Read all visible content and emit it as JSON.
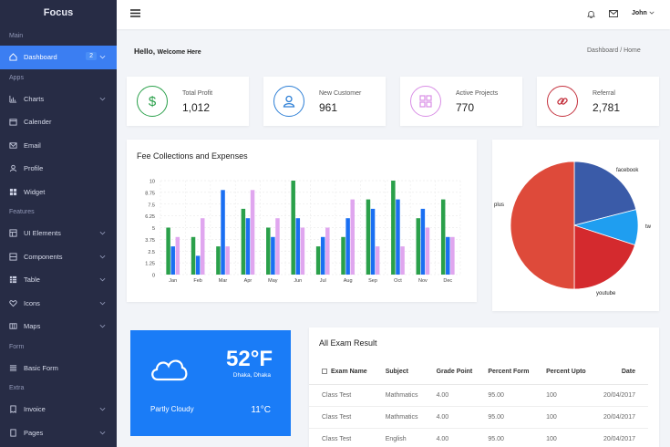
{
  "sidebar": {
    "brand": "Focus",
    "sections": {
      "main": "Main",
      "apps": "Apps",
      "features": "Features",
      "form": "Form",
      "extra": "Extra"
    },
    "items": {
      "dashboard": {
        "label": "Dashboard",
        "badge": "2",
        "icon": "home-icon"
      },
      "charts": {
        "label": "Charts",
        "icon": "bar-chart-icon"
      },
      "calender": {
        "label": "Calender",
        "icon": "calendar-icon"
      },
      "email": {
        "label": "Email",
        "icon": "mail-icon"
      },
      "profile": {
        "label": "Profile",
        "icon": "user-icon"
      },
      "widget": {
        "label": "Widget",
        "icon": "grid-icon"
      },
      "ui": {
        "label": "UI Elements",
        "icon": "layout-icon"
      },
      "components": {
        "label": "Components",
        "icon": "layers-icon"
      },
      "table": {
        "label": "Table",
        "icon": "table-icon"
      },
      "icons": {
        "label": "Icons",
        "icon": "heart-icon"
      },
      "maps": {
        "label": "Maps",
        "icon": "map-icon"
      },
      "basic_form": {
        "label": "Basic Form",
        "icon": "form-icon"
      },
      "invoice": {
        "label": "Invoice",
        "icon": "invoice-icon"
      },
      "pages": {
        "label": "Pages",
        "icon": "pages-icon"
      }
    }
  },
  "header": {
    "user": "John"
  },
  "page": {
    "hello": "Hello,",
    "welcome": "Welcome Here",
    "crumb": "Dashboard  /  Home"
  },
  "stats": [
    {
      "label": "Total Profit",
      "value": "1,012",
      "color": "#2aa04a",
      "icon": "dollar-icon"
    },
    {
      "label": "New Customer",
      "value": "961",
      "color": "#2d7fd6",
      "icon": "user-icon"
    },
    {
      "label": "Active Projects",
      "value": "770",
      "color": "#d98ee6",
      "icon": "grid-icon"
    },
    {
      "label": "Referral",
      "value": "2,781",
      "color": "#c4313d",
      "icon": "link-icon"
    }
  ],
  "fee_chart": {
    "title": "Fee Collections and Expenses"
  },
  "chart_data": [
    {
      "type": "bar",
      "categories": [
        "Jan",
        "Feb",
        "Mar",
        "Apr",
        "May",
        "Jun",
        "Jul",
        "Aug",
        "Sep",
        "Oct",
        "Nov",
        "Dec"
      ],
      "ylim": [
        0,
        10
      ],
      "yticks": [
        "0",
        "1.25",
        "2.5",
        "3.75",
        "5",
        "6.25",
        "7.5",
        "8.75",
        "10"
      ],
      "grid": true,
      "series": [
        {
          "color": "#2aa04a",
          "values": [
            5,
            4,
            3,
            7,
            5,
            10,
            3,
            4,
            8,
            10,
            6,
            8
          ]
        },
        {
          "color": "#1a6ff2",
          "values": [
            3,
            2,
            9,
            6,
            4,
            6,
            4,
            6,
            7,
            8,
            7,
            4
          ]
        },
        {
          "color": "#e0a6ef",
          "values": [
            4,
            6,
            3,
            9,
            6,
            5,
            5,
            8,
            3,
            3,
            5,
            4
          ]
        }
      ]
    },
    {
      "type": "pie",
      "slices": [
        {
          "label": "facebook",
          "value": 21,
          "color": "#3a5ba8"
        },
        {
          "label": "tw",
          "value": 9,
          "color": "#1f9ef0"
        },
        {
          "label": "youtube",
          "value": 20,
          "color": "#d42a2e"
        },
        {
          "label": "plus",
          "value": 50,
          "color": "#de4a3a"
        }
      ]
    }
  ],
  "weather": {
    "temp": "52°F",
    "location": "Dhaka, Dhaka",
    "condition": "Partly Cloudy",
    "low": "11°C"
  },
  "exam": {
    "title": "All Exam Result",
    "headers": [
      "Exam Name",
      "Subject",
      "Grade Point",
      "Percent Form",
      "Percent Upto",
      "Date"
    ],
    "rows": [
      [
        "Class Test",
        "Mathmatics",
        "4.00",
        "95.00",
        "100",
        "20/04/2017"
      ],
      [
        "Class Test",
        "Mathmatics",
        "4.00",
        "95.00",
        "100",
        "20/04/2017"
      ],
      [
        "Class Test",
        "English",
        "4.00",
        "95.00",
        "100",
        "20/04/2017"
      ]
    ]
  }
}
